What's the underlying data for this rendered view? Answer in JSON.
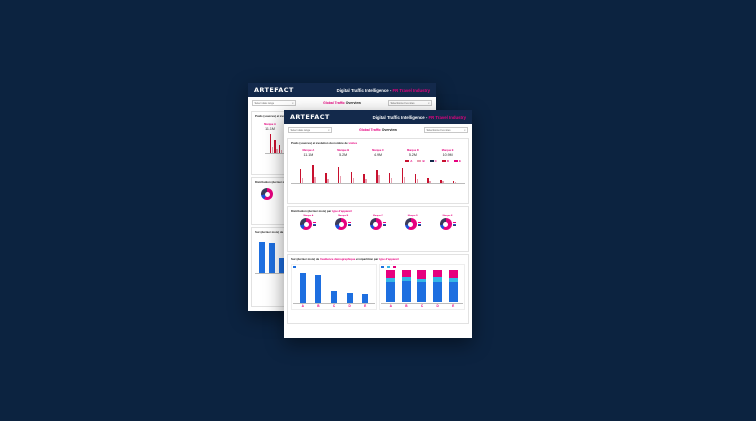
{
  "colors": {
    "background": "#0c2340",
    "header": "#13294b",
    "accent": "#e6007e",
    "bar_red": "#c8102e",
    "bar_blue": "#1e6fe0",
    "bar_cyan": "#35b6e6"
  },
  "header": {
    "logo": "ARTEFACT",
    "title": "Digital Traffic Intelligence - ",
    "title_accent": "FR Travel Industry"
  },
  "filters": {
    "left": "Select date range",
    "right": "Sélectionnez les sites",
    "overview_accent": "Global Traffic",
    "overview": "Overview"
  },
  "section1": {
    "title": "Poids (sources) et évolution du nombre de ",
    "title_accent": "visites"
  },
  "brands": [
    {
      "name": "Marque A",
      "value": "11.1M"
    },
    {
      "name": "Marque B",
      "value": "5.2M"
    },
    {
      "name": "Marque C",
      "value": "4.9M"
    },
    {
      "name": "Marque D",
      "value": "5.2M"
    },
    {
      "name": "Marque E",
      "value": "10.9M"
    }
  ],
  "legend": [
    "A",
    "B",
    "C",
    "D",
    "E"
  ],
  "section2": {
    "title": "Distribution (dernier mois) par ",
    "title_accent": "type d'appareil"
  },
  "donut_brands": [
    "Marque A",
    "Marque B",
    "Marque C",
    "Marque D",
    "Marque E"
  ],
  "section3": {
    "title": "Sur (dernier mois) de ",
    "title_accent": "l'audience démographique",
    "title_tail": " et répartition par ",
    "title_accent2": "type d'appareil"
  },
  "letters": [
    "A",
    "B",
    "C",
    "D",
    "E"
  ],
  "back": {
    "brand_name": "Marque A",
    "brand_value": "11.1M",
    "section1_title": "Poids (sources) et évolution",
    "section2_title": "Distribution (dernier mois)",
    "section3_title": "Sur (dernier mois) de"
  }
}
